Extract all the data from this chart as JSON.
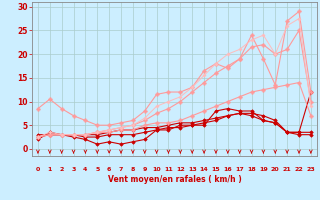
{
  "bg_color": "#cceeff",
  "grid_color": "#aacccc",
  "xlabel": "Vent moyen/en rafales ( km/h )",
  "xlabel_color": "#cc0000",
  "tick_color": "#cc0000",
  "arrow_color": "#cc0000",
  "xlim": [
    -0.5,
    23.5
  ],
  "ylim": [
    -1.5,
    31
  ],
  "yticks": [
    0,
    5,
    10,
    15,
    20,
    25,
    30
  ],
  "xticks": [
    0,
    1,
    2,
    3,
    4,
    5,
    6,
    7,
    8,
    9,
    10,
    11,
    12,
    13,
    14,
    15,
    16,
    17,
    18,
    19,
    20,
    21,
    22,
    23
  ],
  "series": [
    {
      "x": [
        0,
        1,
        2,
        3,
        4,
        5,
        6,
        7,
        8,
        9,
        10,
        11,
        12,
        13,
        14,
        15,
        16,
        17,
        18,
        19,
        20,
        21,
        22,
        23
      ],
      "y": [
        2.5,
        3,
        3,
        3,
        2.5,
        2.5,
        3,
        3,
        3,
        3.5,
        4,
        4.5,
        4.5,
        5,
        5.5,
        6,
        7,
        7.5,
        7,
        6,
        5.5,
        3.5,
        3,
        3
      ],
      "color": "#cc0000",
      "lw": 0.8,
      "marker": "D",
      "markersize": 1.8
    },
    {
      "x": [
        0,
        1,
        2,
        3,
        4,
        5,
        6,
        7,
        8,
        9,
        10,
        11,
        12,
        13,
        14,
        15,
        16,
        17,
        18,
        19,
        20,
        21,
        22,
        23
      ],
      "y": [
        2,
        3.5,
        3,
        3,
        3,
        3,
        3.5,
        4,
        4,
        4.5,
        4.5,
        5,
        5.5,
        5.5,
        6,
        6.5,
        7,
        7.5,
        7.5,
        7,
        6,
        3.5,
        3.5,
        3.5
      ],
      "color": "#cc0000",
      "lw": 0.8,
      "marker": "D",
      "markersize": 1.8
    },
    {
      "x": [
        0,
        1,
        2,
        3,
        4,
        5,
        6,
        7,
        8,
        9,
        10,
        11,
        12,
        13,
        14,
        15,
        16,
        17,
        18,
        19,
        20,
        21,
        22,
        23
      ],
      "y": [
        3,
        3,
        3,
        2.5,
        2,
        1,
        1.5,
        1,
        1.5,
        2,
        4,
        4,
        5,
        5,
        5,
        8,
        8.5,
        8,
        8,
        6,
        5.5,
        3.5,
        3.5,
        12
      ],
      "color": "#cc0000",
      "lw": 0.8,
      "marker": "D",
      "markersize": 1.8
    },
    {
      "x": [
        0,
        1,
        2,
        3,
        4,
        5,
        6,
        7,
        8,
        9,
        10,
        11,
        12,
        13,
        14,
        15,
        16,
        17,
        18,
        19,
        20,
        21,
        22,
        23
      ],
      "y": [
        8.5,
        10.5,
        8.5,
        7,
        6,
        5,
        5,
        5.5,
        6,
        8,
        11.5,
        12,
        12,
        13,
        16.5,
        18,
        17,
        19,
        24,
        19,
        13.5,
        27,
        29,
        12
      ],
      "color": "#ff9999",
      "lw": 0.8,
      "marker": "P",
      "markersize": 2.5
    },
    {
      "x": [
        0,
        1,
        2,
        3,
        4,
        5,
        6,
        7,
        8,
        9,
        10,
        11,
        12,
        13,
        14,
        15,
        16,
        17,
        18,
        19,
        20,
        21,
        22,
        23
      ],
      "y": [
        2.5,
        3,
        3,
        3,
        3,
        3.5,
        3.5,
        4,
        4,
        5,
        5.5,
        5.5,
        6,
        7,
        8,
        9,
        10,
        11,
        12,
        12.5,
        13,
        13.5,
        14,
        7
      ],
      "color": "#ff9999",
      "lw": 0.8,
      "marker": "P",
      "markersize": 2.5
    },
    {
      "x": [
        0,
        1,
        2,
        3,
        4,
        5,
        6,
        7,
        8,
        9,
        10,
        11,
        12,
        13,
        14,
        15,
        16,
        17,
        18,
        19,
        20,
        21,
        22,
        23
      ],
      "y": [
        2.5,
        3,
        3,
        3,
        3,
        3.5,
        4,
        4.5,
        5,
        6,
        7.5,
        8.5,
        10,
        12,
        14,
        16,
        17.5,
        19,
        21.5,
        22,
        20,
        21,
        25,
        10
      ],
      "color": "#ff9999",
      "lw": 0.8,
      "marker": "P",
      "markersize": 2.5
    },
    {
      "x": [
        0,
        1,
        2,
        3,
        4,
        5,
        6,
        7,
        8,
        9,
        10,
        11,
        12,
        13,
        14,
        15,
        16,
        17,
        18,
        19,
        20,
        21,
        22,
        23
      ],
      "y": [
        2.5,
        3.5,
        3,
        3,
        3,
        3.5,
        4,
        4.5,
        5,
        6.5,
        9,
        10,
        11,
        13,
        15.5,
        18,
        20,
        21,
        23,
        24,
        20,
        26,
        27.5,
        9
      ],
      "color": "#ffbbbb",
      "lw": 0.7,
      "marker": "P",
      "markersize": 2.0
    }
  ]
}
